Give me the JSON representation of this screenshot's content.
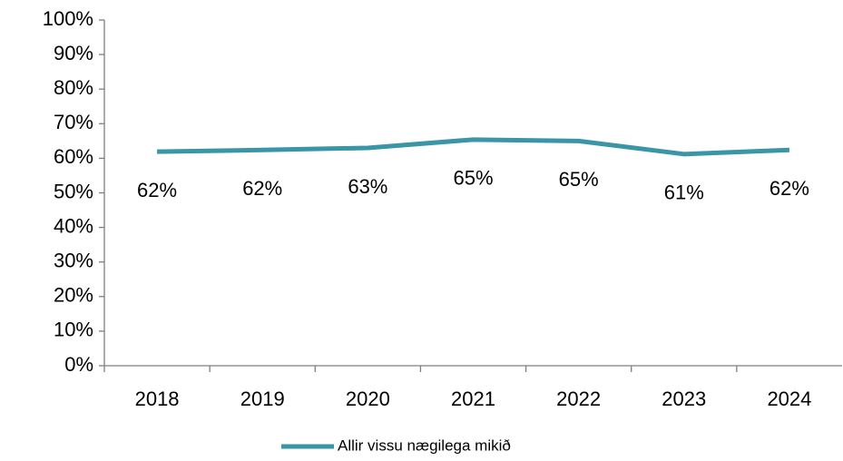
{
  "chart_data": {
    "type": "line",
    "categories": [
      "2018",
      "2019",
      "2020",
      "2021",
      "2022",
      "2023",
      "2024"
    ],
    "series": [
      {
        "name": "Allir vissu nægilega mikið",
        "color": "#3a95a6",
        "values": [
          61.9,
          62.4,
          63,
          65.4,
          65,
          61.2,
          62.4
        ],
        "value_labels": [
          "62%",
          "62%",
          "63%",
          "65%",
          "65%",
          "61%",
          "62%"
        ]
      }
    ],
    "ylim": [
      0,
      100
    ],
    "yticks": [
      {
        "value": 0,
        "label": "0%"
      },
      {
        "value": 10,
        "label": "10%"
      },
      {
        "value": 20,
        "label": "20%"
      },
      {
        "value": 30,
        "label": "30%"
      },
      {
        "value": 40,
        "label": "40%"
      },
      {
        "value": 50,
        "label": "50%"
      },
      {
        "value": 60,
        "label": "60%"
      },
      {
        "value": 70,
        "label": "70%"
      },
      {
        "value": 80,
        "label": "80%"
      },
      {
        "value": 90,
        "label": "90%"
      },
      {
        "value": 100,
        "label": "100%"
      }
    ],
    "grid": false,
    "legend": "bottom"
  }
}
